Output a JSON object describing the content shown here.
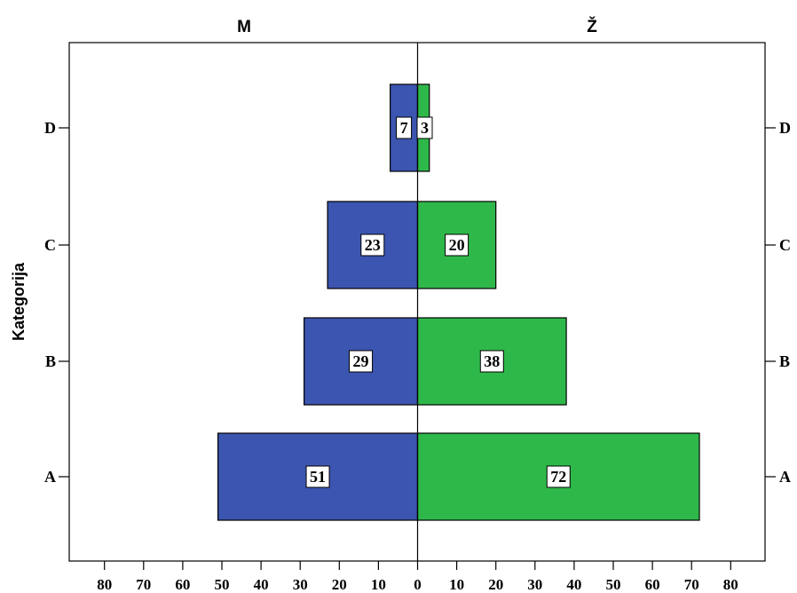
{
  "chart_data": {
    "type": "bar",
    "orientation": "population-pyramid",
    "categories": [
      "A",
      "B",
      "C",
      "D"
    ],
    "series": [
      {
        "name": "M",
        "values": [
          51,
          29,
          23,
          7
        ],
        "color": "#3c55b0"
      },
      {
        "name": "Ž",
        "values": [
          72,
          38,
          20,
          3
        ],
        "color": "#2fb84a"
      }
    ],
    "ylabel": "Kategorija",
    "xlim": [
      -80,
      80
    ],
    "xticks": [
      80,
      70,
      60,
      50,
      40,
      30,
      20,
      10,
      0,
      10,
      20,
      30,
      40,
      50,
      60,
      70,
      80
    ],
    "grid": false,
    "data_labels": true
  }
}
